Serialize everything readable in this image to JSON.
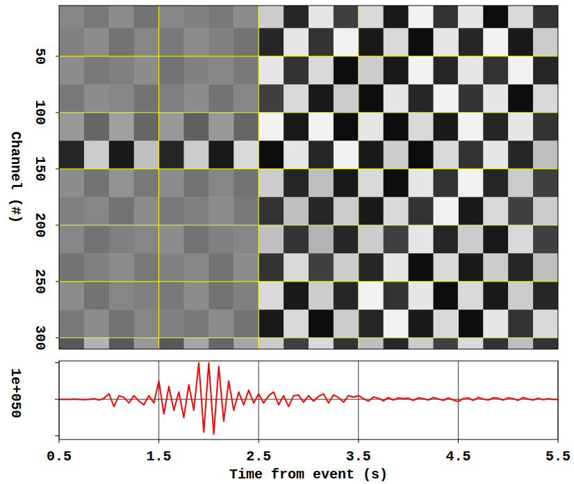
{
  "chart_data": [
    {
      "type": "heatmap",
      "ylabel": "Channel (#)",
      "x": [
        0.625,
        0.875,
        1.125,
        1.375,
        1.625,
        1.875,
        2.125,
        2.375,
        2.625,
        2.875,
        3.125,
        3.375,
        3.625,
        3.875,
        4.125,
        4.375,
        4.625,
        4.875,
        5.125,
        5.375
      ],
      "y": [
        12.5,
        37.5,
        62.5,
        87.5,
        112.5,
        137.5,
        162.5,
        187.5,
        212.5,
        237.5,
        262.5,
        287.5,
        312.5
      ],
      "cells": [
        [
          0.05,
          -0.05,
          0.1,
          -0.1,
          0.05,
          0,
          -0.05,
          0.1,
          0.6,
          -0.7,
          0.8,
          -0.5,
          0.7,
          -0.8,
          0.9,
          -0.6,
          0.8,
          -0.9,
          0.7,
          -0.6
        ],
        [
          0,
          0.1,
          -0.1,
          0.05,
          -0.05,
          0.1,
          0,
          -0.1,
          -0.7,
          0.8,
          -0.6,
          0.9,
          -0.8,
          0.7,
          -0.9,
          0.8,
          -0.7,
          0.9,
          -0.8,
          0.6
        ],
        [
          0.1,
          -0.05,
          0,
          0.1,
          -0.1,
          0,
          0.05,
          -0.05,
          0.8,
          -0.6,
          0.7,
          -0.9,
          0.6,
          -0.8,
          0.9,
          -0.7,
          0.8,
          -0.6,
          0.9,
          -0.7
        ],
        [
          -0.05,
          0.1,
          0.05,
          -0.1,
          0,
          0.1,
          -0.1,
          0.05,
          -0.5,
          0.7,
          -0.8,
          0.6,
          -0.9,
          0.8,
          -0.7,
          0.9,
          -0.6,
          0.8,
          -0.9,
          0.7
        ],
        [
          0.2,
          -0.2,
          0.25,
          -0.2,
          0.2,
          -0.25,
          0.2,
          -0.2,
          0.9,
          -0.8,
          0.9,
          -0.9,
          0.8,
          -0.9,
          0.7,
          -0.8,
          0.9,
          -0.7,
          0.8,
          -0.6
        ],
        [
          -0.7,
          0.6,
          -0.8,
          0.5,
          -0.7,
          0.6,
          -0.8,
          0.7,
          -0.9,
          0.8,
          -0.7,
          0.9,
          -0.8,
          0.6,
          -0.9,
          0.7,
          -0.6,
          0.8,
          -0.7,
          0.5
        ],
        [
          0.1,
          -0.1,
          0.15,
          -0.05,
          0.1,
          -0.1,
          0.05,
          -0.1,
          0.6,
          -0.7,
          0.5,
          -0.8,
          0.7,
          -0.9,
          0.8,
          -0.6,
          0.9,
          -0.7,
          0.6,
          -0.5
        ],
        [
          0,
          0.05,
          -0.1,
          0.1,
          -0.05,
          0,
          0.1,
          -0.05,
          -0.6,
          0.5,
          -0.7,
          0.6,
          -0.8,
          0.7,
          -0.6,
          0.9,
          -0.8,
          0.7,
          -0.5,
          0.6
        ],
        [
          0.05,
          -0.1,
          0,
          0.05,
          0.1,
          -0.1,
          0,
          0.05,
          0.5,
          -0.6,
          0.4,
          -0.7,
          0.6,
          -0.5,
          0.8,
          -0.7,
          0.6,
          -0.8,
          0.7,
          -0.5
        ],
        [
          -0.1,
          0,
          0.1,
          -0.05,
          0,
          0.05,
          -0.1,
          0.1,
          -0.6,
          0.7,
          -0.5,
          0.6,
          -0.7,
          0.8,
          -0.9,
          0.7,
          -0.8,
          0.6,
          -0.7,
          0.5
        ],
        [
          0.1,
          -0.1,
          0.05,
          0,
          -0.05,
          0.1,
          -0.1,
          0,
          0.7,
          -0.8,
          0.6,
          -0.7,
          0.9,
          -0.6,
          0.8,
          -0.9,
          0.7,
          -0.8,
          0.6,
          -0.7
        ],
        [
          -0.05,
          0.1,
          -0.1,
          0.05,
          0,
          -0.05,
          0.1,
          -0.1,
          -0.8,
          0.7,
          -0.9,
          0.6,
          -0.7,
          0.9,
          -0.8,
          0.7,
          -0.9,
          0.8,
          -0.6,
          0.7
        ],
        [
          -0.3,
          0.4,
          -0.3,
          0.2,
          -0.3,
          0.3,
          -0.2,
          0.3,
          0.6,
          -0.5,
          0.7,
          -0.6,
          0.5,
          -0.7,
          0.6,
          -0.5,
          0.7,
          -0.6,
          0.5,
          -0.6
        ]
      ],
      "color_range": [
        -1,
        1
      ],
      "xlim": [
        0.5,
        5.5
      ],
      "xticks": [
        1.5,
        2.5,
        3.5,
        4.5
      ],
      "ylim": [
        5,
        310
      ],
      "yticks": [
        50,
        100,
        150,
        200,
        250,
        300
      ],
      "grid": true,
      "tick_labels": "y"
    },
    {
      "type": "line",
      "xlabel": "Time from event (s)",
      "ylabel": "1e+050",
      "color": "#ff0000",
      "x": [
        0.5,
        0.55,
        0.6,
        0.65,
        0.7,
        0.75,
        0.8,
        0.85,
        0.9,
        0.95,
        1.0,
        1.05,
        1.1,
        1.15,
        1.2,
        1.25,
        1.3,
        1.35,
        1.4,
        1.45,
        1.5,
        1.55,
        1.6,
        1.65,
        1.7,
        1.75,
        1.8,
        1.85,
        1.9,
        1.95,
        2.0,
        2.05,
        2.1,
        2.15,
        2.2,
        2.25,
        2.3,
        2.35,
        2.4,
        2.45,
        2.5,
        2.55,
        2.6,
        2.65,
        2.7,
        2.75,
        2.8,
        2.85,
        2.9,
        2.95,
        3.0,
        3.05,
        3.1,
        3.15,
        3.2,
        3.25,
        3.3,
        3.35,
        3.4,
        3.45,
        3.5,
        3.55,
        3.6,
        3.65,
        3.7,
        3.75,
        3.8,
        3.85,
        3.9,
        3.95,
        4.0,
        4.05,
        4.1,
        4.15,
        4.2,
        4.25,
        4.3,
        4.35,
        4.4,
        4.45,
        4.5,
        4.55,
        4.6,
        4.65,
        4.7,
        4.75,
        4.8,
        4.85,
        4.9,
        4.95,
        5.0,
        5.05,
        5.1,
        5.15,
        5.2,
        5.25,
        5.3,
        5.35,
        5.4,
        5.45,
        5.5
      ],
      "values": [
        0,
        0,
        0,
        0.01,
        0,
        -0.01,
        0,
        0.02,
        -0.02,
        0.03,
        0.15,
        -0.2,
        0.1,
        0.05,
        -0.1,
        0.1,
        -0.05,
        -0.15,
        0.1,
        -0.1,
        0.5,
        -0.4,
        0.35,
        -0.3,
        0.2,
        -0.5,
        0.4,
        -0.3,
        1.0,
        -0.9,
        1.0,
        -0.95,
        0.9,
        -0.6,
        0.5,
        -0.3,
        0.2,
        -0.15,
        0.25,
        -0.1,
        0.15,
        -0.1,
        0.1,
        0.2,
        -0.15,
        0.1,
        -0.2,
        0.1,
        0.12,
        -0.08,
        0.1,
        -0.05,
        0.08,
        0.15,
        -0.1,
        0.12,
        0.05,
        -0.08,
        0.1,
        0.06,
        0.1,
        0.02,
        -0.05,
        0.06,
        0.03,
        -0.04,
        0.05,
        -0.02,
        0.04,
        0.02,
        0.03,
        -0.03,
        0.04,
        0.02,
        -0.02,
        0.05,
        0.01,
        -0.03,
        0.04,
        -0.02,
        -0.06,
        0.02,
        0.04,
        -0.03,
        0.05,
        0.01,
        -0.02,
        0.04,
        0.03,
        -0.02,
        0.04,
        0.02,
        -0.03,
        0.05,
        0.01,
        -0.02,
        0.03,
        -0.01,
        0.02,
        0,
        0
      ],
      "xlim": [
        0.5,
        5.5
      ],
      "xticks": [
        0.5,
        1.5,
        2.5,
        3.5,
        4.5,
        5.5
      ],
      "ylim": [
        -1.1,
        1.05
      ],
      "yticks": [
        -1,
        0,
        1
      ],
      "grid": true,
      "tick_labels": "x"
    }
  ]
}
